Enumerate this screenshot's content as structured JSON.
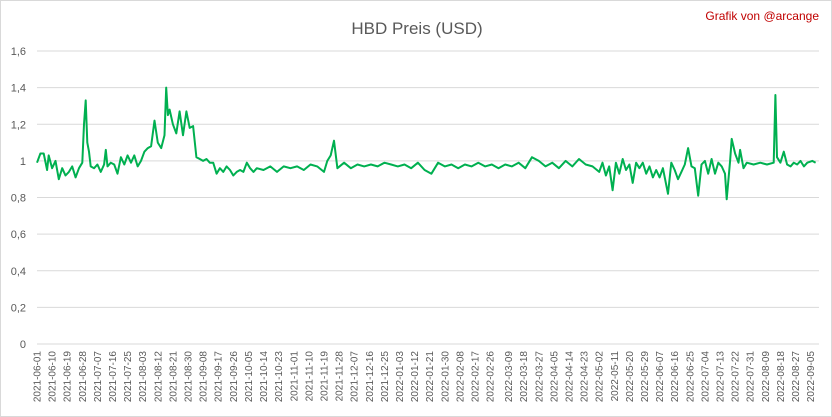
{
  "chart_data": {
    "type": "line",
    "title": "HBD Preis (USD)",
    "credit": "Grafik von @arcange",
    "xlabel": "",
    "ylabel": "",
    "ylim": [
      0,
      1.6
    ],
    "yticks": [
      "0",
      "0,2",
      "0,4",
      "0,6",
      "0,8",
      "1",
      "1,2",
      "1,4",
      "1,6"
    ],
    "ytick_values": [
      0,
      0.2,
      0.4,
      0.6,
      0.8,
      1.0,
      1.2,
      1.4,
      1.6
    ],
    "grid": true,
    "legend": "none",
    "line_color": "#00b050",
    "x_start": "2021-06-01",
    "x_end": "2022-09-10",
    "xticks": [
      "2021-06-01",
      "2021-06-10",
      "2021-06-19",
      "2021-06-28",
      "2021-07-07",
      "2021-07-16",
      "2021-07-25",
      "2021-08-03",
      "2021-08-12",
      "2021-08-21",
      "2021-08-30",
      "2021-09-08",
      "2021-09-17",
      "2021-09-26",
      "2021-10-05",
      "2021-10-14",
      "2021-10-23",
      "2021-11-01",
      "2021-11-10",
      "2021-11-19",
      "2021-11-28",
      "2021-12-07",
      "2021-12-16",
      "2021-12-25",
      "2022-01-03",
      "2022-01-12",
      "2022-01-21",
      "2022-01-30",
      "2022-02-08",
      "2022-02-17",
      "2022-02-26",
      "2022-03-09",
      "2022-03-18",
      "2022-03-27",
      "2022-04-05",
      "2022-04-14",
      "2022-04-23",
      "2022-05-02",
      "2022-05-11",
      "2022-05-20",
      "2022-05-29",
      "2022-06-07",
      "2022-06-16",
      "2022-06-25",
      "2022-07-04",
      "2022-07-13",
      "2022-07-22",
      "2022-07-31",
      "2022-08-09",
      "2022-08-18",
      "2022-08-27",
      "2022-09-05"
    ],
    "series": [
      {
        "name": "",
        "points": [
          [
            "2021-06-01",
            0.99
          ],
          [
            "2021-06-03",
            1.04
          ],
          [
            "2021-06-05",
            1.04
          ],
          [
            "2021-06-07",
            0.95
          ],
          [
            "2021-06-08",
            1.03
          ],
          [
            "2021-06-10",
            0.96
          ],
          [
            "2021-06-12",
            1.0
          ],
          [
            "2021-06-14",
            0.9
          ],
          [
            "2021-06-16",
            0.96
          ],
          [
            "2021-06-18",
            0.92
          ],
          [
            "2021-06-20",
            0.94
          ],
          [
            "2021-06-22",
            0.97
          ],
          [
            "2021-06-24",
            0.91
          ],
          [
            "2021-06-26",
            0.96
          ],
          [
            "2021-06-28",
            0.99
          ],
          [
            "2021-06-29",
            1.2
          ],
          [
            "2021-06-30",
            1.33
          ],
          [
            "2021-07-01",
            1.1
          ],
          [
            "2021-07-02",
            1.05
          ],
          [
            "2021-07-03",
            0.97
          ],
          [
            "2021-07-05",
            0.96
          ],
          [
            "2021-07-07",
            0.98
          ],
          [
            "2021-07-09",
            0.94
          ],
          [
            "2021-07-11",
            0.98
          ],
          [
            "2021-07-12",
            1.06
          ],
          [
            "2021-07-13",
            0.97
          ],
          [
            "2021-07-15",
            0.99
          ],
          [
            "2021-07-17",
            0.98
          ],
          [
            "2021-07-19",
            0.93
          ],
          [
            "2021-07-21",
            1.02
          ],
          [
            "2021-07-23",
            0.98
          ],
          [
            "2021-07-25",
            1.03
          ],
          [
            "2021-07-27",
            0.99
          ],
          [
            "2021-07-29",
            1.03
          ],
          [
            "2021-07-31",
            0.97
          ],
          [
            "2021-08-02",
            1.0
          ],
          [
            "2021-08-04",
            1.05
          ],
          [
            "2021-08-06",
            1.07
          ],
          [
            "2021-08-08",
            1.08
          ],
          [
            "2021-08-10",
            1.22
          ],
          [
            "2021-08-12",
            1.1
          ],
          [
            "2021-08-14",
            1.07
          ],
          [
            "2021-08-16",
            1.14
          ],
          [
            "2021-08-17",
            1.4
          ],
          [
            "2021-08-18",
            1.25
          ],
          [
            "2021-08-19",
            1.28
          ],
          [
            "2021-08-21",
            1.2
          ],
          [
            "2021-08-23",
            1.15
          ],
          [
            "2021-08-25",
            1.27
          ],
          [
            "2021-08-27",
            1.14
          ],
          [
            "2021-08-29",
            1.27
          ],
          [
            "2021-08-31",
            1.18
          ],
          [
            "2021-09-02",
            1.19
          ],
          [
            "2021-09-04",
            1.02
          ],
          [
            "2021-09-06",
            1.01
          ],
          [
            "2021-09-08",
            1.0
          ],
          [
            "2021-09-10",
            1.01
          ],
          [
            "2021-09-12",
            0.99
          ],
          [
            "2021-09-14",
            0.99
          ],
          [
            "2021-09-16",
            0.93
          ],
          [
            "2021-09-18",
            0.96
          ],
          [
            "2021-09-20",
            0.94
          ],
          [
            "2021-09-22",
            0.97
          ],
          [
            "2021-09-24",
            0.95
          ],
          [
            "2021-09-26",
            0.92
          ],
          [
            "2021-09-28",
            0.94
          ],
          [
            "2021-09-30",
            0.95
          ],
          [
            "2021-10-02",
            0.94
          ],
          [
            "2021-10-04",
            0.99
          ],
          [
            "2021-10-06",
            0.96
          ],
          [
            "2021-10-08",
            0.94
          ],
          [
            "2021-10-10",
            0.96
          ],
          [
            "2021-10-14",
            0.95
          ],
          [
            "2021-10-18",
            0.97
          ],
          [
            "2021-10-22",
            0.94
          ],
          [
            "2021-10-26",
            0.97
          ],
          [
            "2021-10-30",
            0.96
          ],
          [
            "2021-11-03",
            0.97
          ],
          [
            "2021-11-07",
            0.95
          ],
          [
            "2021-11-11",
            0.98
          ],
          [
            "2021-11-15",
            0.97
          ],
          [
            "2021-11-19",
            0.94
          ],
          [
            "2021-11-21",
            1.0
          ],
          [
            "2021-11-23",
            1.03
          ],
          [
            "2021-11-25",
            1.11
          ],
          [
            "2021-11-27",
            0.96
          ],
          [
            "2021-12-01",
            0.99
          ],
          [
            "2021-12-05",
            0.96
          ],
          [
            "2021-12-09",
            0.98
          ],
          [
            "2021-12-13",
            0.97
          ],
          [
            "2021-12-17",
            0.98
          ],
          [
            "2021-12-21",
            0.97
          ],
          [
            "2021-12-25",
            0.99
          ],
          [
            "2021-12-29",
            0.98
          ],
          [
            "2022-01-02",
            0.97
          ],
          [
            "2022-01-06",
            0.98
          ],
          [
            "2022-01-10",
            0.96
          ],
          [
            "2022-01-14",
            0.99
          ],
          [
            "2022-01-18",
            0.95
          ],
          [
            "2022-01-22",
            0.93
          ],
          [
            "2022-01-26",
            0.99
          ],
          [
            "2022-01-30",
            0.97
          ],
          [
            "2022-02-03",
            0.98
          ],
          [
            "2022-02-07",
            0.96
          ],
          [
            "2022-02-11",
            0.98
          ],
          [
            "2022-02-15",
            0.97
          ],
          [
            "2022-02-19",
            0.99
          ],
          [
            "2022-02-23",
            0.97
          ],
          [
            "2022-02-27",
            0.98
          ],
          [
            "2022-03-03",
            0.96
          ],
          [
            "2022-03-07",
            0.98
          ],
          [
            "2022-03-11",
            0.97
          ],
          [
            "2022-03-15",
            0.99
          ],
          [
            "2022-03-19",
            0.96
          ],
          [
            "2022-03-23",
            1.02
          ],
          [
            "2022-03-27",
            1.0
          ],
          [
            "2022-03-31",
            0.97
          ],
          [
            "2022-04-04",
            0.99
          ],
          [
            "2022-04-08",
            0.96
          ],
          [
            "2022-04-12",
            1.0
          ],
          [
            "2022-04-16",
            0.97
          ],
          [
            "2022-04-20",
            1.01
          ],
          [
            "2022-04-24",
            0.98
          ],
          [
            "2022-04-28",
            0.97
          ],
          [
            "2022-05-02",
            0.94
          ],
          [
            "2022-05-04",
            0.99
          ],
          [
            "2022-05-06",
            0.92
          ],
          [
            "2022-05-08",
            0.97
          ],
          [
            "2022-05-10",
            0.84
          ],
          [
            "2022-05-12",
            0.99
          ],
          [
            "2022-05-14",
            0.93
          ],
          [
            "2022-05-16",
            1.01
          ],
          [
            "2022-05-18",
            0.95
          ],
          [
            "2022-05-20",
            0.98
          ],
          [
            "2022-05-22",
            0.88
          ],
          [
            "2022-05-24",
            0.99
          ],
          [
            "2022-05-26",
            0.96
          ],
          [
            "2022-05-28",
            0.99
          ],
          [
            "2022-05-30",
            0.93
          ],
          [
            "2022-06-01",
            0.97
          ],
          [
            "2022-06-03",
            0.91
          ],
          [
            "2022-06-05",
            0.95
          ],
          [
            "2022-06-07",
            0.91
          ],
          [
            "2022-06-09",
            0.96
          ],
          [
            "2022-06-12",
            0.82
          ],
          [
            "2022-06-14",
            0.99
          ],
          [
            "2022-06-16",
            0.95
          ],
          [
            "2022-06-18",
            0.9
          ],
          [
            "2022-06-20",
            0.94
          ],
          [
            "2022-06-22",
            0.98
          ],
          [
            "2022-06-24",
            1.07
          ],
          [
            "2022-06-26",
            0.97
          ],
          [
            "2022-06-28",
            0.96
          ],
          [
            "2022-06-30",
            0.81
          ],
          [
            "2022-07-02",
            0.98
          ],
          [
            "2022-07-04",
            1.0
          ],
          [
            "2022-07-06",
            0.93
          ],
          [
            "2022-07-08",
            1.01
          ],
          [
            "2022-07-10",
            0.93
          ],
          [
            "2022-07-12",
            0.99
          ],
          [
            "2022-07-14",
            0.97
          ],
          [
            "2022-07-16",
            0.93
          ],
          [
            "2022-07-17",
            0.79
          ],
          [
            "2022-07-19",
            1.0
          ],
          [
            "2022-07-20",
            1.12
          ],
          [
            "2022-07-22",
            1.04
          ],
          [
            "2022-07-24",
            0.99
          ],
          [
            "2022-07-25",
            1.06
          ],
          [
            "2022-07-27",
            0.96
          ],
          [
            "2022-07-29",
            0.99
          ],
          [
            "2022-08-02",
            0.98
          ],
          [
            "2022-08-06",
            0.99
          ],
          [
            "2022-08-10",
            0.98
          ],
          [
            "2022-08-14",
            0.99
          ],
          [
            "2022-08-15",
            1.36
          ],
          [
            "2022-08-16",
            1.02
          ],
          [
            "2022-08-18",
            0.99
          ],
          [
            "2022-08-20",
            1.05
          ],
          [
            "2022-08-22",
            0.98
          ],
          [
            "2022-08-24",
            0.97
          ],
          [
            "2022-08-26",
            0.99
          ],
          [
            "2022-08-28",
            0.98
          ],
          [
            "2022-08-30",
            1.0
          ],
          [
            "2022-09-01",
            0.97
          ],
          [
            "2022-09-03",
            0.99
          ],
          [
            "2022-09-06",
            1.0
          ],
          [
            "2022-09-08",
            0.99
          ]
        ]
      }
    ]
  }
}
